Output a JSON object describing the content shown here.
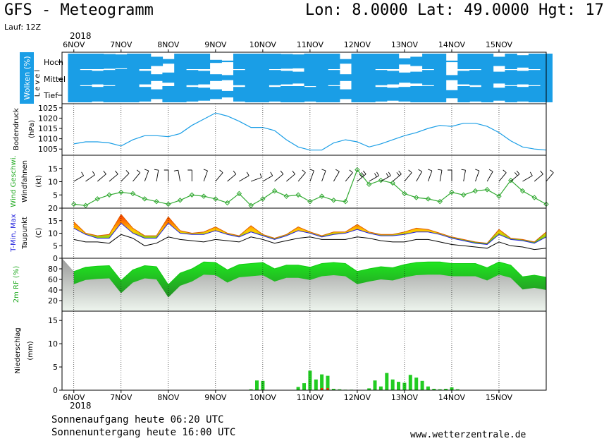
{
  "header": {
    "title": "GFS - Meteogramm",
    "location": "Lon: 8.0000  Lat: 49.0000  Hgt: 17",
    "run": "Lauf: 12Z",
    "year": "2018"
  },
  "footer": {
    "sunrise": "Sonnenaufgang heute 06:20 UTC",
    "sunset": "Sonnenuntergang heute 16:00 UTC",
    "website": "www.wetterzentrale.de"
  },
  "colors": {
    "cloud": "#1a9ee6",
    "pressure": "#1a9ee6",
    "wind_speed": "#33aa33",
    "barbs": "#000000",
    "temp_max": "#ff2200",
    "temp_min": "#2222dd",
    "dewpoint": "#000000",
    "humidity": "#11dd11",
    "precip": "#22cc22",
    "precip_red": "#ff2200"
  },
  "chart_data": [
    {
      "type": "heatmap",
      "panel": "wolken",
      "ylabel": "Wolken (%)",
      "levels_axis_label": "Level",
      "levels": [
        "Hoch",
        "Mittel",
        "Tief"
      ],
      "x_dates": [
        "6NOV",
        "7NOV",
        "8NOV",
        "9NOV",
        "10NOV",
        "11NOV",
        "12NOV",
        "13NOV",
        "14NOV",
        "15NOV"
      ],
      "hours": [
        0,
        6,
        12,
        18,
        24,
        30,
        36,
        42,
        48,
        54,
        60,
        66,
        72,
        78,
        84,
        90,
        96,
        102,
        108,
        114,
        120,
        126,
        132,
        138,
        144,
        150,
        156,
        162,
        168,
        174,
        180,
        186,
        192,
        198,
        204,
        210,
        216,
        222,
        228,
        234,
        240
      ],
      "cover": {
        "Hoch": [
          100,
          100,
          100,
          95,
          90,
          100,
          100,
          60,
          30,
          100,
          100,
          100,
          20,
          10,
          100,
          100,
          100,
          100,
          95,
          90,
          100,
          100,
          100,
          30,
          100,
          100,
          100,
          100,
          40,
          60,
          100,
          100,
          10,
          100,
          100,
          100,
          60,
          100,
          80,
          100,
          100
        ],
        "Mittel": [
          100,
          90,
          80,
          90,
          100,
          100,
          80,
          40,
          60,
          100,
          90,
          80,
          40,
          30,
          90,
          100,
          100,
          90,
          80,
          70,
          100,
          100,
          90,
          40,
          100,
          100,
          90,
          80,
          60,
          70,
          90,
          100,
          30,
          80,
          90,
          100,
          70,
          90,
          80,
          90,
          100
        ],
        "Tief": [
          100,
          100,
          90,
          100,
          100,
          100,
          90,
          60,
          100,
          100,
          90,
          80,
          60,
          40,
          90,
          100,
          100,
          90,
          100,
          100,
          90,
          100,
          100,
          60,
          100,
          100,
          90,
          80,
          90,
          100,
          100,
          100,
          50,
          100,
          90,
          100,
          80,
          100,
          90,
          100,
          100
        ]
      }
    },
    {
      "type": "line",
      "panel": "bodendruck",
      "title": "",
      "ylabel": "Bodendruck (hPa)",
      "yticks": [
        1005,
        1010,
        1015,
        1020,
        1025
      ],
      "ylim": [
        1002,
        1027
      ],
      "x_hours": [
        0,
        6,
        12,
        18,
        24,
        30,
        36,
        42,
        48,
        54,
        60,
        66,
        72,
        78,
        84,
        90,
        96,
        102,
        108,
        114,
        120,
        126,
        132,
        138,
        144,
        150,
        156,
        162,
        168,
        174,
        180,
        186,
        192,
        198,
        204,
        210,
        216,
        222,
        228,
        234,
        240
      ],
      "series": [
        {
          "values": [
            1007.5,
            1008.5,
            1008.5,
            1008.0,
            1006.5,
            1009.5,
            1011.5,
            1011.5,
            1011.0,
            1012.5,
            1016.5,
            1019.5,
            1022.5,
            1021.0,
            1018.5,
            1015.5,
            1015.5,
            1014.0,
            1009.5,
            1006.0,
            1004.5,
            1004.5,
            1008.0,
            1009.5,
            1008.5,
            1006.0,
            1007.5,
            1009.5,
            1011.5,
            1013.0,
            1015.0,
            1016.5,
            1016.0,
            1017.5,
            1017.5,
            1016.0,
            1013.0,
            1009.0,
            1006.0,
            1005.0,
            1004.5
          ]
        }
      ]
    },
    {
      "type": "line",
      "panel": "wind",
      "ylabel": "Wind Geschwi. (kt)",
      "ylabel_barbs": "Windfahnen",
      "yticks": [
        5,
        10,
        15
      ],
      "ylim": [
        0,
        20
      ],
      "x_hours": [
        0,
        6,
        12,
        18,
        24,
        30,
        36,
        42,
        48,
        54,
        60,
        66,
        72,
        78,
        84,
        90,
        96,
        102,
        108,
        114,
        120,
        126,
        132,
        138,
        144,
        150,
        156,
        162,
        168,
        174,
        180,
        186,
        192,
        198,
        204,
        210,
        216,
        222,
        228,
        234,
        240
      ],
      "series": [
        {
          "name": "Wind Geschwi.",
          "values": [
            1.5,
            1.0,
            3.5,
            5.0,
            6.0,
            5.5,
            3.5,
            2.5,
            1.5,
            3.0,
            5.0,
            4.5,
            3.5,
            2.0,
            5.5,
            1.0,
            3.5,
            6.5,
            4.5,
            5.0,
            2.5,
            4.5,
            3.0,
            2.5,
            14.5,
            9.0,
            10.5,
            9.5,
            5.5,
            4.0,
            3.5,
            2.5,
            6.0,
            5.0,
            6.5,
            7.0,
            4.5,
            10.5,
            6.5,
            4.0,
            1.5
          ]
        }
      ],
      "barb_directions_deg": [
        240,
        235,
        230,
        230,
        225,
        220,
        200,
        190,
        180,
        170,
        180,
        200,
        220,
        230,
        240,
        250,
        240,
        230,
        230,
        220,
        200,
        200,
        210,
        220,
        230,
        240,
        240,
        230,
        220,
        210,
        200,
        190,
        180,
        190,
        200,
        210,
        220,
        230,
        240,
        230,
        220
      ]
    },
    {
      "type": "area",
      "panel": "temperatur",
      "ylabel": "T-Min, Max (C)",
      "ylabel2": "Taupunkt",
      "yticks": [
        0,
        5,
        10,
        15,
        20
      ],
      "ylim": [
        0,
        20
      ],
      "x_hours": [
        0,
        6,
        12,
        18,
        24,
        30,
        36,
        42,
        48,
        54,
        60,
        66,
        72,
        78,
        84,
        90,
        96,
        102,
        108,
        114,
        120,
        126,
        132,
        138,
        144,
        150,
        156,
        162,
        168,
        174,
        180,
        186,
        192,
        198,
        204,
        210,
        216,
        222,
        228,
        234,
        240
      ],
      "series": [
        {
          "name": "Max",
          "values": [
            14.5,
            10.0,
            9.0,
            9.5,
            17.5,
            12.0,
            9.0,
            9.0,
            16.5,
            11.0,
            10.0,
            10.5,
            12.5,
            10.0,
            9.0,
            13.0,
            9.5,
            8.0,
            9.5,
            12.5,
            10.5,
            9.0,
            10.5,
            10.5,
            13.5,
            10.5,
            9.5,
            9.5,
            10.5,
            12.0,
            11.5,
            10.0,
            8.5,
            7.5,
            6.5,
            6.0,
            11.5,
            8.0,
            7.5,
            6.5,
            10.5
          ]
        },
        {
          "name": "Min",
          "values": [
            12.0,
            9.5,
            8.0,
            8.0,
            14.0,
            10.0,
            8.0,
            8.0,
            14.0,
            10.0,
            9.5,
            9.5,
            11.0,
            9.5,
            8.5,
            10.5,
            9.0,
            7.5,
            9.0,
            11.0,
            10.0,
            8.5,
            9.5,
            10.0,
            11.5,
            10.0,
            9.0,
            9.0,
            9.5,
            10.5,
            10.5,
            9.5,
            8.0,
            7.0,
            6.0,
            5.5,
            9.5,
            7.5,
            7.0,
            6.0,
            8.5
          ]
        },
        {
          "name": "Taupunkt",
          "values": [
            7.5,
            6.5,
            6.5,
            6.0,
            9.5,
            8.0,
            5.0,
            6.0,
            8.5,
            7.5,
            7.0,
            6.5,
            7.5,
            7.0,
            6.5,
            8.5,
            7.5,
            6.0,
            7.0,
            8.0,
            8.5,
            7.5,
            7.5,
            7.5,
            8.5,
            8.0,
            7.0,
            6.5,
            6.5,
            7.5,
            7.5,
            6.5,
            5.5,
            5.0,
            4.5,
            4.0,
            6.5,
            5.0,
            4.5,
            3.5,
            4.0
          ]
        }
      ]
    },
    {
      "type": "area",
      "panel": "relative_feuchte",
      "ylabel": "2m RF (%)",
      "yticks": [
        20,
        40,
        60,
        80
      ],
      "ylim": [
        0,
        100
      ],
      "x_hours": [
        0,
        6,
        12,
        18,
        24,
        30,
        36,
        42,
        48,
        54,
        60,
        66,
        72,
        78,
        84,
        90,
        96,
        102,
        108,
        114,
        120,
        126,
        132,
        138,
        144,
        150,
        156,
        162,
        168,
        174,
        180,
        186,
        192,
        198,
        204,
        210,
        216,
        222,
        228,
        234,
        240
      ],
      "series": [
        {
          "values": [
            75,
            83,
            85,
            86,
            58,
            78,
            86,
            84,
            50,
            72,
            80,
            93,
            92,
            78,
            88,
            90,
            92,
            80,
            87,
            87,
            83,
            90,
            92,
            90,
            75,
            80,
            84,
            82,
            88,
            92,
            93,
            93,
            90,
            90,
            90,
            82,
            93,
            87,
            65,
            68,
            64
          ]
        }
      ]
    },
    {
      "type": "bar",
      "panel": "niederschlag",
      "ylabel": "Niederschlag (mm)",
      "yticks": [
        0,
        5,
        10,
        15
      ],
      "ylim": [
        0,
        17
      ],
      "x_hours": [
        90,
        93,
        96,
        114,
        117,
        120,
        123,
        126,
        129,
        132,
        135,
        138,
        141,
        150,
        153,
        156,
        159,
        162,
        165,
        168,
        171,
        174,
        177,
        180,
        183,
        186,
        189,
        192,
        195
      ],
      "values": [
        0.2,
        2.1,
        2.0,
        0.7,
        1.5,
        4.2,
        2.3,
        3.4,
        3.1,
        0.3,
        0.2,
        0.1,
        0.1,
        0.4,
        2.1,
        0.8,
        3.7,
        2.3,
        1.8,
        1.6,
        3.3,
        2.7,
        2.0,
        0.8,
        0.3,
        0.2,
        0.3,
        0.6,
        0.2
      ],
      "red_x_hours": [
        126,
        129
      ]
    }
  ]
}
